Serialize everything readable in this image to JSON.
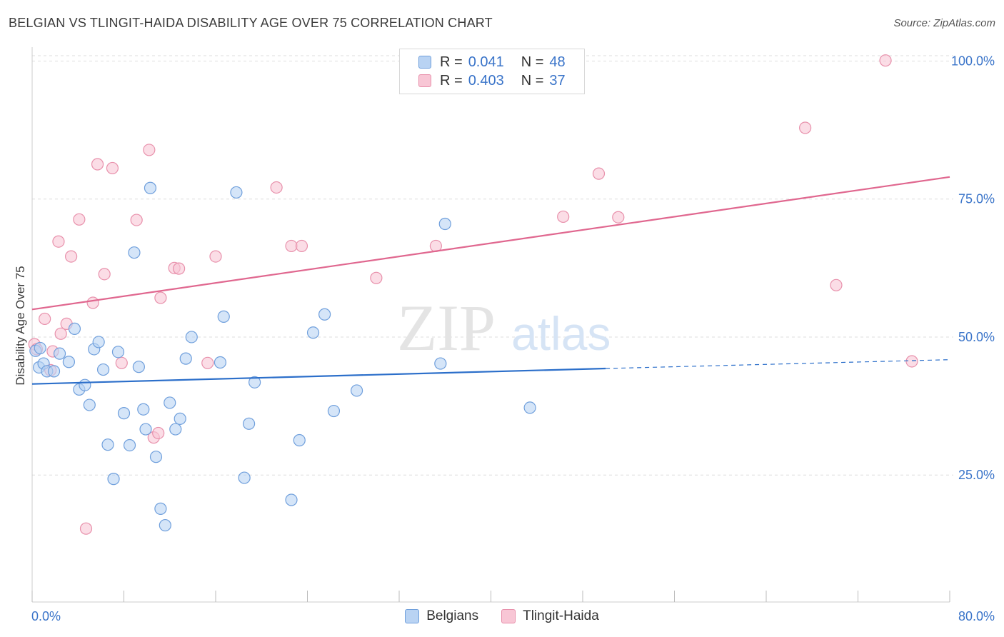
{
  "header": {
    "title": "BELGIAN VS TLINGIT-HAIDA DISABILITY AGE OVER 75 CORRELATION CHART",
    "source": "Source: ZipAtlas.com"
  },
  "legend": {
    "rows": [
      {
        "r_label": "R =",
        "r_value": "0.041",
        "n_label": "N =",
        "n_value": "48"
      },
      {
        "r_label": "R =",
        "r_value": "0.403",
        "n_label": "N =",
        "n_value": "37"
      }
    ]
  },
  "watermark": {
    "zip": "ZIP",
    "atlas": "atlas"
  },
  "colors": {
    "blue_fill": "#b9d3f3",
    "blue_stroke": "#6f9fdc",
    "blue_line": "#2c6fca",
    "pink_fill": "#f8c6d5",
    "pink_stroke": "#e890ab",
    "pink_line": "#e0678f",
    "grid": "#dddddd",
    "tick_label": "#3a74c9"
  },
  "chart_data": {
    "type": "scatter",
    "title": "BELGIAN VS TLINGIT-HAIDA DISABILITY AGE OVER 75 CORRELATION CHART",
    "xlabel": "",
    "ylabel": "Disability Age Over 75",
    "xlim": [
      0,
      80
    ],
    "ylim": [
      2,
      102
    ],
    "x_tick_labels": [
      "0.0%",
      "80.0%"
    ],
    "y_ticks": [
      25,
      50,
      75,
      100
    ],
    "y_tick_labels": [
      "25.0%",
      "50.0%",
      "75.0%",
      "100.0%"
    ],
    "grid": true,
    "legend_position": "top-center",
    "series": [
      {
        "name": "Belgians",
        "color": "#6f9fdc",
        "points": [
          [
            0.3,
            47.5
          ],
          [
            0.6,
            44.5
          ],
          [
            1.0,
            45.2
          ],
          [
            1.3,
            43.8
          ],
          [
            1.9,
            43.8
          ],
          [
            2.4,
            47.0
          ],
          [
            3.2,
            45.5
          ],
          [
            3.7,
            51.5
          ],
          [
            4.1,
            40.5
          ],
          [
            4.6,
            41.3
          ],
          [
            5.0,
            37.7
          ],
          [
            5.4,
            47.8
          ],
          [
            5.8,
            49.1
          ],
          [
            6.2,
            44.1
          ],
          [
            6.6,
            30.5
          ],
          [
            7.1,
            24.3
          ],
          [
            7.5,
            47.3
          ],
          [
            8.0,
            36.2
          ],
          [
            8.5,
            30.4
          ],
          [
            8.9,
            65.3
          ],
          [
            9.3,
            44.6
          ],
          [
            9.7,
            36.9
          ],
          [
            9.9,
            33.3
          ],
          [
            10.3,
            77.0
          ],
          [
            10.8,
            28.3
          ],
          [
            11.2,
            18.9
          ],
          [
            11.6,
            15.9
          ],
          [
            12.0,
            38.1
          ],
          [
            12.5,
            33.3
          ],
          [
            12.9,
            35.2
          ],
          [
            13.4,
            46.1
          ],
          [
            13.9,
            50.0
          ],
          [
            16.4,
            45.4
          ],
          [
            16.7,
            53.7
          ],
          [
            17.8,
            76.2
          ],
          [
            18.5,
            24.5
          ],
          [
            18.9,
            34.3
          ],
          [
            19.4,
            41.8
          ],
          [
            22.6,
            20.5
          ],
          [
            23.3,
            31.3
          ],
          [
            24.5,
            50.8
          ],
          [
            25.5,
            54.1
          ],
          [
            26.3,
            36.6
          ],
          [
            28.3,
            40.3
          ],
          [
            35.6,
            45.2
          ],
          [
            36.0,
            70.5
          ],
          [
            43.4,
            37.2
          ],
          [
            0.7,
            48.0
          ]
        ]
      },
      {
        "name": "Tlingit-Haida",
        "color": "#e890ab",
        "points": [
          [
            0.2,
            48.7
          ],
          [
            1.1,
            53.3
          ],
          [
            1.6,
            44.0
          ],
          [
            1.8,
            47.4
          ],
          [
            2.3,
            67.3
          ],
          [
            2.5,
            50.6
          ],
          [
            3.0,
            52.4
          ],
          [
            3.4,
            64.6
          ],
          [
            4.1,
            71.3
          ],
          [
            4.7,
            15.3
          ],
          [
            5.3,
            56.2
          ],
          [
            5.7,
            81.3
          ],
          [
            6.3,
            61.4
          ],
          [
            7.0,
            80.6
          ],
          [
            7.8,
            45.3
          ],
          [
            9.1,
            71.2
          ],
          [
            10.2,
            83.9
          ],
          [
            10.6,
            31.8
          ],
          [
            11.0,
            32.6
          ],
          [
            11.2,
            57.1
          ],
          [
            12.4,
            62.5
          ],
          [
            12.8,
            62.4
          ],
          [
            15.3,
            45.3
          ],
          [
            16.0,
            64.6
          ],
          [
            21.3,
            77.1
          ],
          [
            22.6,
            66.5
          ],
          [
            23.5,
            66.5
          ],
          [
            30.0,
            60.7
          ],
          [
            35.2,
            66.5
          ],
          [
            46.3,
            71.8
          ],
          [
            49.4,
            79.6
          ],
          [
            51.1,
            71.7
          ],
          [
            67.4,
            87.9
          ],
          [
            70.1,
            59.4
          ],
          [
            74.4,
            100.1
          ],
          [
            76.7,
            45.6
          ],
          [
            0.4,
            47.8
          ]
        ]
      }
    ],
    "trend_lines": [
      {
        "name": "Belgians",
        "x": [
          0,
          50
        ],
        "y": [
          41.5,
          44.3
        ],
        "dashed_extension_x": [
          50,
          80
        ],
        "dashed_extension_y": [
          44.3,
          45.9
        ]
      },
      {
        "name": "Tlingit-Haida",
        "x": [
          0,
          80
        ],
        "y": [
          55.0,
          79.0
        ]
      }
    ]
  },
  "bottom_legend": {
    "items": [
      {
        "label": "Belgians"
      },
      {
        "label": "Tlingit-Haida"
      }
    ]
  }
}
